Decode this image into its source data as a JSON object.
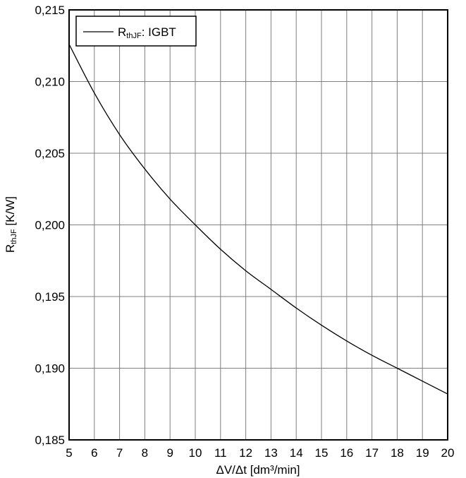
{
  "chart_data": {
    "type": "line",
    "title": "",
    "xlabel": "ΔV/Δt [dm³/min]",
    "ylabel": {
      "main": "R",
      "sub": "thJF",
      "unit": " [K/W]"
    },
    "xlim": [
      5,
      20
    ],
    "ylim": [
      0.185,
      0.215
    ],
    "x_ticks": [
      5,
      6,
      7,
      8,
      9,
      10,
      11,
      12,
      13,
      14,
      15,
      16,
      17,
      18,
      19,
      20
    ],
    "x_tick_labels": [
      "5",
      "6",
      "7",
      "8",
      "9",
      "10",
      "11",
      "12",
      "13",
      "14",
      "15",
      "16",
      "17",
      "18",
      "19",
      "20"
    ],
    "y_ticks": [
      0.185,
      0.19,
      0.195,
      0.2,
      0.205,
      0.21,
      0.215
    ],
    "y_tick_labels": [
      "0,185",
      "0,190",
      "0,195",
      "0,200",
      "0,205",
      "0,210",
      "0,215"
    ],
    "grid": true,
    "legend_position": "top-left",
    "series": [
      {
        "name": {
          "main": "R",
          "sub": "thJF",
          "rest": ": IGBT"
        },
        "color": "#000000",
        "x": [
          5,
          6,
          7,
          8,
          9,
          10,
          11,
          12,
          13,
          14,
          15,
          16,
          17,
          18,
          19,
          20
        ],
        "y": [
          0.2126,
          0.2092,
          0.2063,
          0.2039,
          0.2018,
          0.2,
          0.1983,
          0.1968,
          0.1955,
          0.1942,
          0.193,
          0.1919,
          0.1909,
          0.19,
          0.1891,
          0.1882
        ]
      }
    ]
  }
}
